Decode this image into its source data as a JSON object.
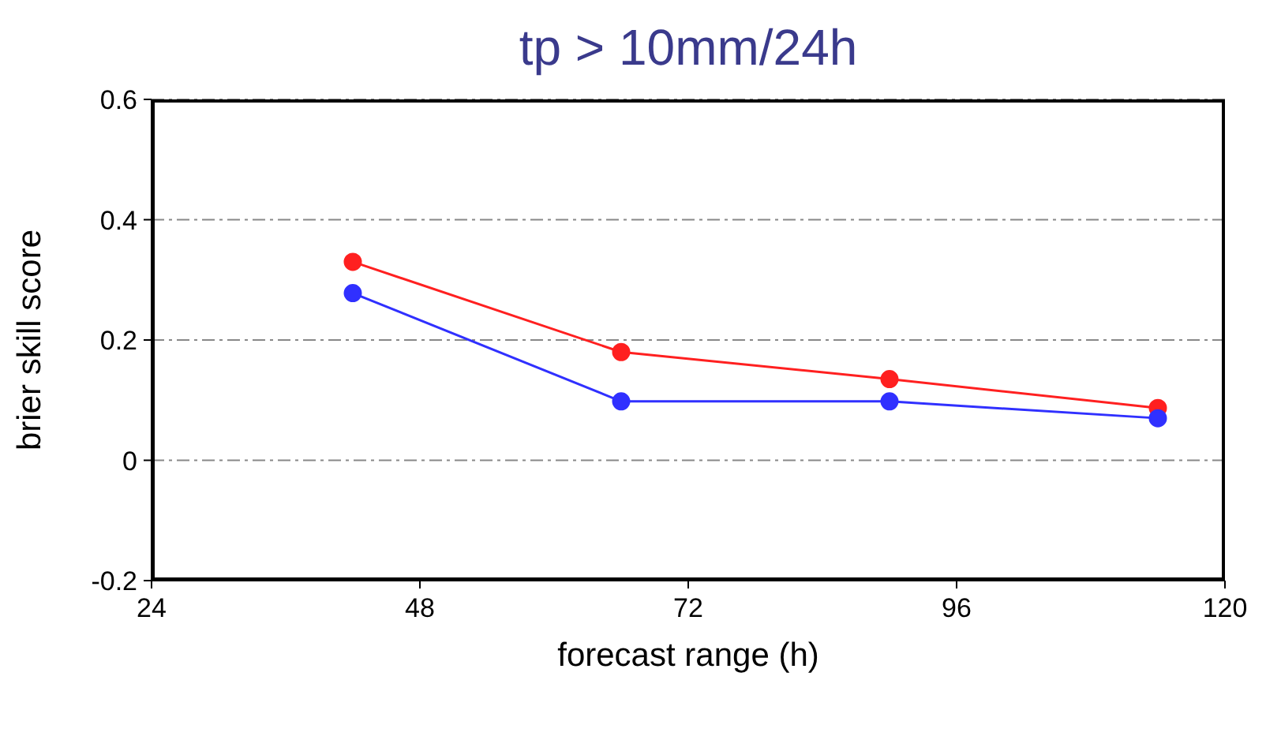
{
  "chart_data": {
    "type": "line",
    "title": "tp > 10mm/24h",
    "xlabel": "forecast range (h)",
    "ylabel": "brier skill score",
    "x": [
      42,
      66,
      90,
      114
    ],
    "series": [
      {
        "color": "#ff2020",
        "values": [
          0.33,
          0.18,
          0.135,
          0.087
        ]
      },
      {
        "color": "#3030ff",
        "values": [
          0.278,
          0.098,
          0.098,
          0.07
        ]
      }
    ],
    "xlim": [
      24,
      120
    ],
    "xticks": [
      24,
      48,
      72,
      96,
      120
    ],
    "ylim": [
      -0.2,
      0.6
    ],
    "yticks": [
      -0.2,
      0,
      0.2,
      0.4,
      0.6
    ],
    "grid": "y",
    "marker": "circle",
    "line_style": "solid"
  }
}
